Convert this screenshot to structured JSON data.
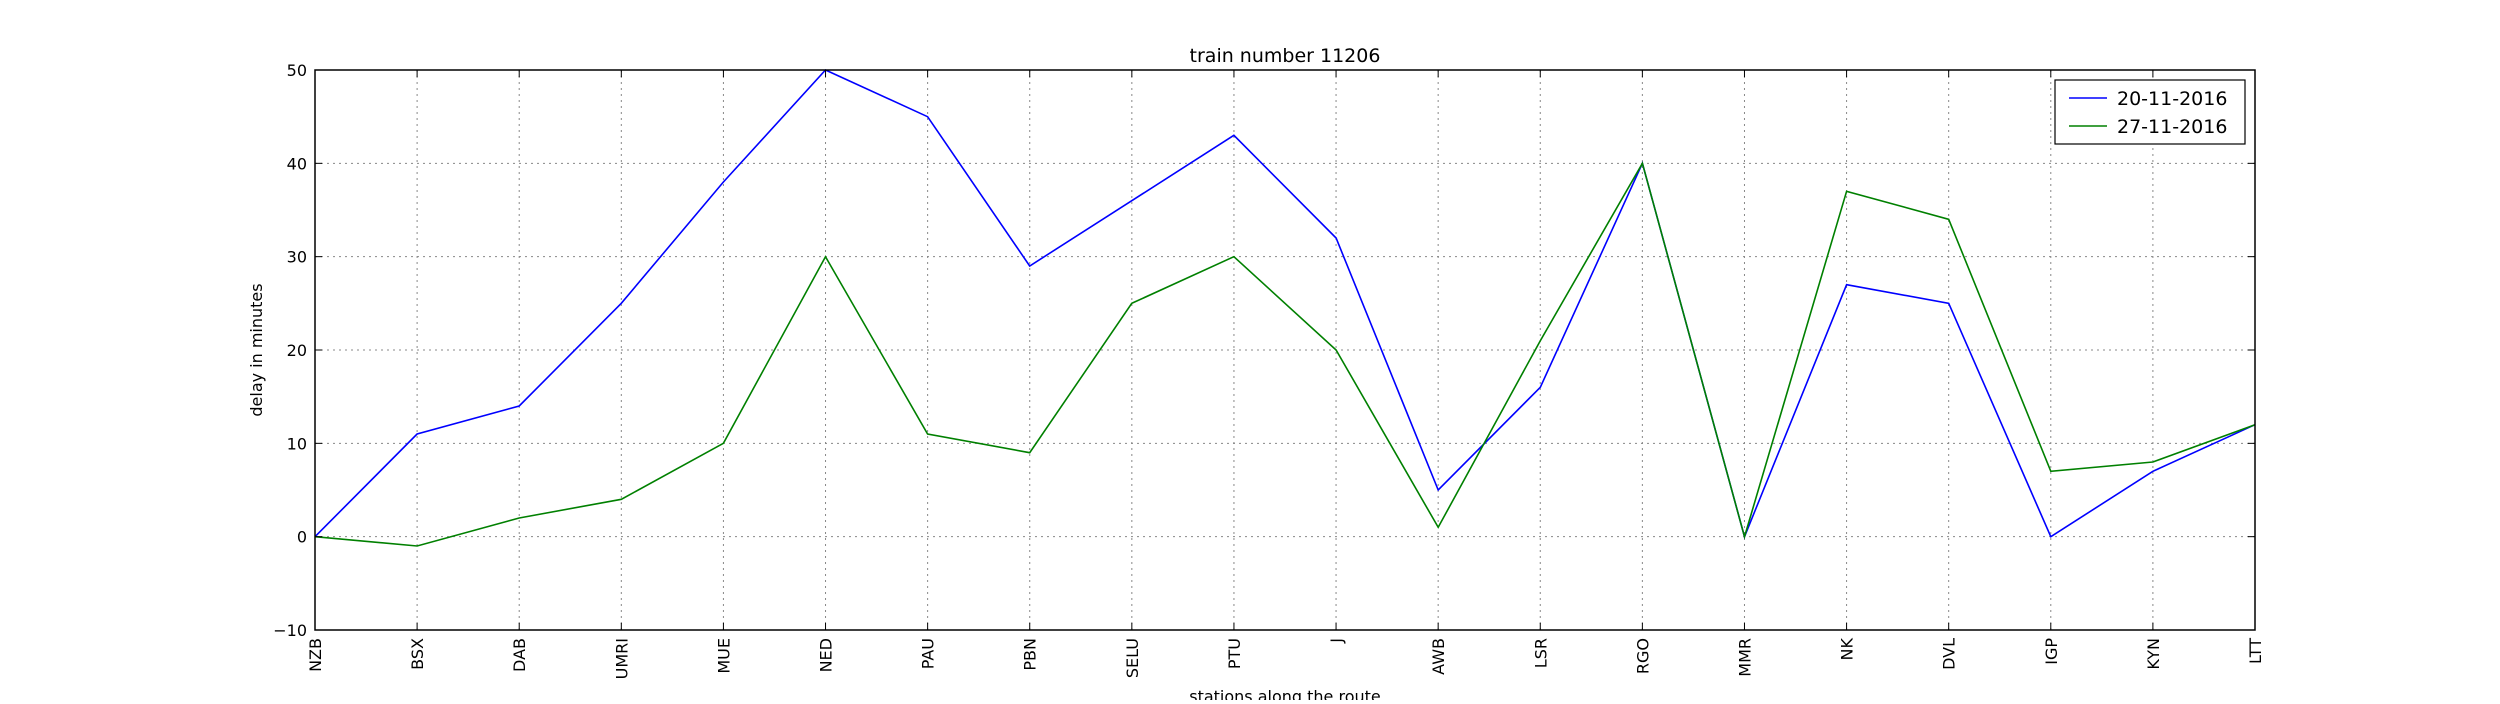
{
  "chart_data": {
    "type": "line",
    "title": "train number 11206",
    "xlabel": "stations along the route",
    "ylabel": "delay in minutes",
    "categories": [
      "NZB",
      "BSX",
      "DAB",
      "UMRI",
      "MUE",
      "NED",
      "PAU",
      "PBN",
      "SELU",
      "PTU",
      "J",
      "AWB",
      "LSR",
      "RGO",
      "MMR",
      "NK",
      "DVL",
      "IGP",
      "KYN",
      "LTT"
    ],
    "ylim": [
      -10,
      50
    ],
    "yticks": [
      -10,
      0,
      10,
      20,
      30,
      40,
      50
    ],
    "grid": true,
    "legend_position": "top-right",
    "series": [
      {
        "name": "20-11-2016",
        "color": "#0000ff",
        "values": [
          0,
          11,
          14,
          25,
          38,
          50,
          45,
          29,
          36,
          43,
          32,
          5,
          16,
          40,
          0,
          27,
          25,
          0,
          7,
          12
        ]
      },
      {
        "name": "27-11-2016",
        "color": "#008000",
        "values": [
          0,
          -1,
          2,
          4,
          10,
          30,
          11,
          9,
          25,
          30,
          20,
          1,
          21,
          40,
          0,
          37,
          34,
          7,
          8,
          12
        ]
      }
    ]
  }
}
